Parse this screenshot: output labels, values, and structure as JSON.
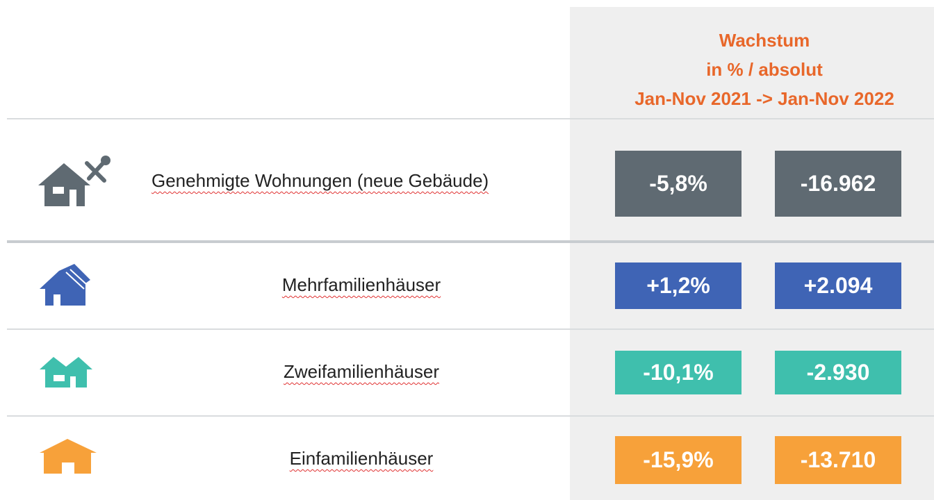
{
  "header": {
    "lines": [
      "Wachstum",
      "in % / absolut",
      "Jan-Nov 2021 -> Jan-Nov 2022"
    ]
  },
  "rows": [
    {
      "label": "Genehmigte Wohnungen (neue Gebäude)",
      "percent": "-5,8%",
      "absolute": "-16.962"
    },
    {
      "label": "Mehrfamilienhäuser",
      "percent": "+1,2%",
      "absolute": "+2.094"
    },
    {
      "label": "Zweifamilienhäuser",
      "percent": "-10,1%",
      "absolute": "-2.930"
    },
    {
      "label": "Einfamilienhäuser",
      "percent": "-15,9%",
      "absolute": "-13.710"
    }
  ]
}
